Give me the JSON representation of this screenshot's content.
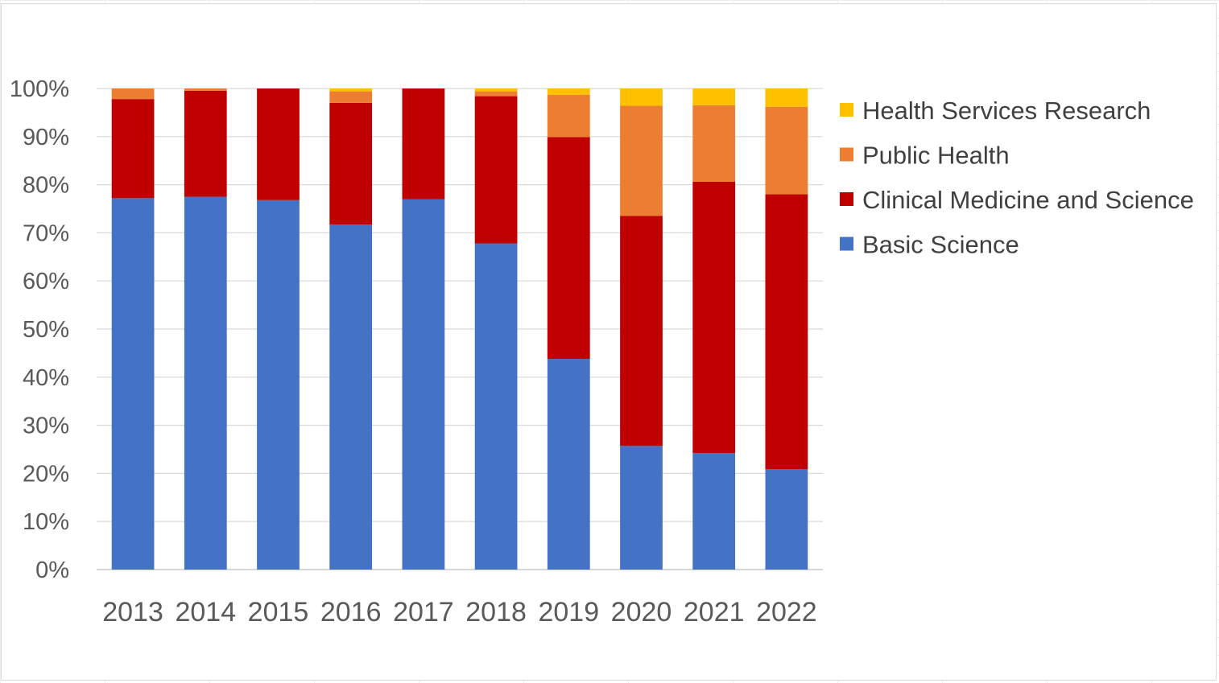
{
  "chart_data": {
    "type": "bar",
    "stacked": true,
    "percent": true,
    "title": "",
    "xlabel": "",
    "ylabel": "",
    "categories": [
      "2013",
      "2014",
      "2015",
      "2016",
      "2017",
      "2018",
      "2019",
      "2020",
      "2021",
      "2022"
    ],
    "ylim": [
      0,
      100
    ],
    "yticks": [
      "0%",
      "10%",
      "20%",
      "30%",
      "40%",
      "50%",
      "60%",
      "70%",
      "80%",
      "90%",
      "100%"
    ],
    "grid": "horizontal",
    "legend_position": "right",
    "series": [
      {
        "name": "Basic Science",
        "color": "#4472C4",
        "values": [
          77.2,
          77.5,
          76.8,
          71.7,
          77.0,
          67.8,
          43.8,
          25.7,
          24.2,
          20.9
        ]
      },
      {
        "name": "Clinical Medicine and Science",
        "color": "#C00000",
        "values": [
          20.6,
          22.0,
          23.2,
          25.3,
          23.0,
          30.6,
          46.1,
          47.8,
          56.4,
          57.1
        ]
      },
      {
        "name": "Public Health",
        "color": "#ED7D31",
        "values": [
          2.2,
          0.5,
          0.0,
          2.4,
          0.0,
          1.0,
          8.8,
          22.9,
          15.9,
          18.2
        ]
      },
      {
        "name": "Health Services Research",
        "color": "#FFC000",
        "values": [
          0.0,
          0.0,
          0.0,
          0.6,
          0.0,
          0.6,
          1.3,
          3.6,
          3.5,
          3.8
        ]
      }
    ]
  }
}
